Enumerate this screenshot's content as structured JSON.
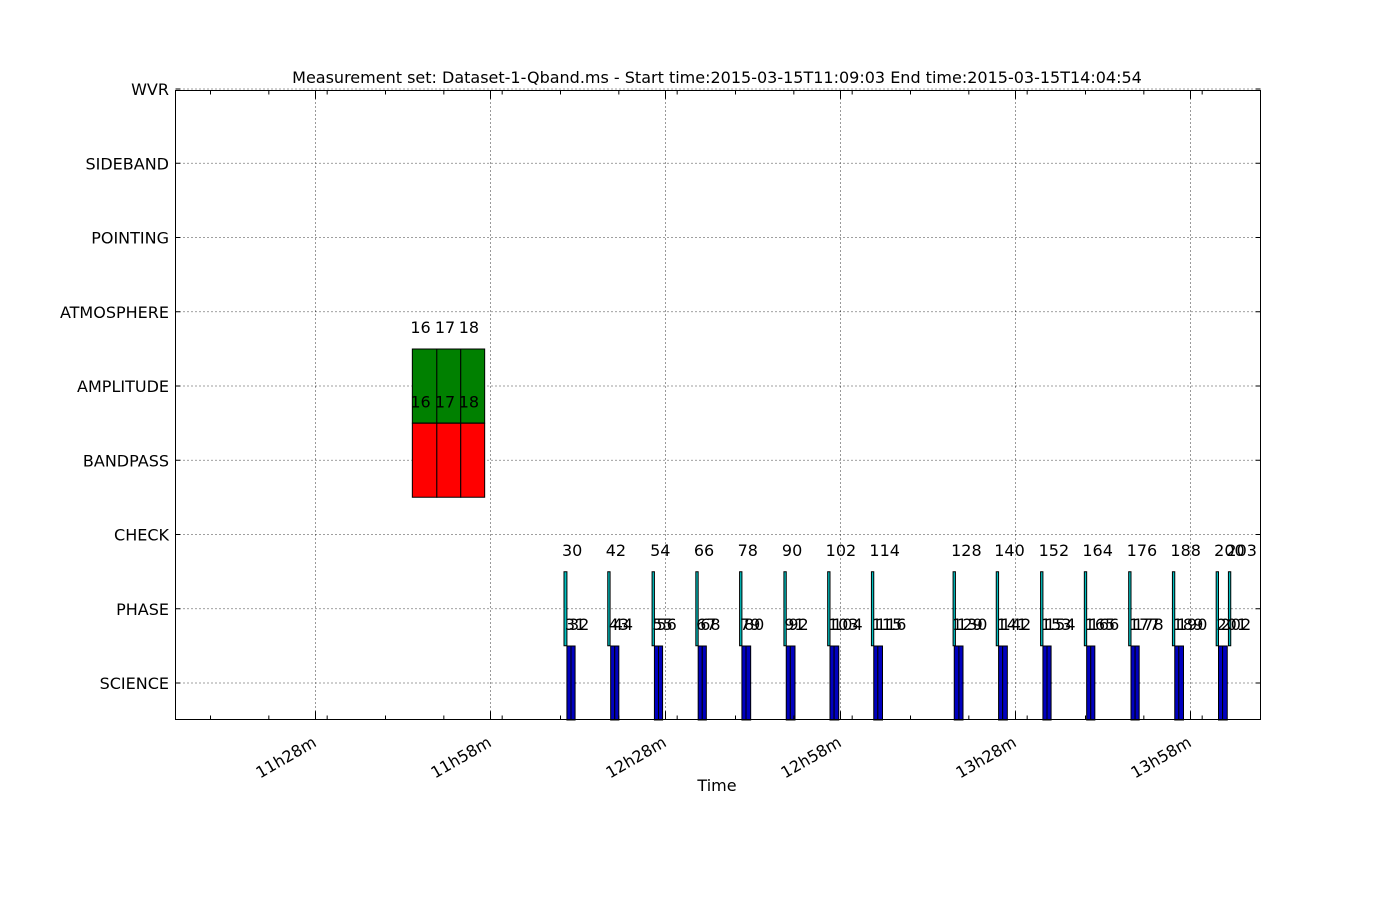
{
  "chart_data": {
    "type": "bar",
    "title": "Measurement set: Dataset-1-Qband.ms - Start time:2015-03-15T11:09:03 End time:2015-03-15T14:04:54",
    "xlabel": "Time",
    "ylabel": "",
    "grid": true,
    "x_tick_labels": [
      "11h28m",
      "11h58m",
      "12h28m",
      "12h58m",
      "13h28m",
      "13h58m"
    ],
    "x_tick_minutes": [
      688,
      718,
      748,
      778,
      808,
      838
    ],
    "xlim_minutes": [
      664,
      850
    ],
    "categories": [
      "SCIENCE",
      "PHASE",
      "CHECK",
      "BANDPASS",
      "AMPLITUDE",
      "ATMOSPHERE",
      "POINTING",
      "SIDEBAND",
      "WVR"
    ],
    "colors": {
      "SCIENCE": "#0000bf",
      "PHASE": "#00bfbf",
      "BANDPASS": "#ff0000",
      "AMPLITUDE": "#008000"
    },
    "series": [
      {
        "category": "AMPLITUDE",
        "scans": [
          {
            "label": "16",
            "start": 704.6,
            "end": 708.8
          },
          {
            "label": "17",
            "start": 708.8,
            "end": 712.9
          },
          {
            "label": "18",
            "start": 712.9,
            "end": 717.0
          }
        ]
      },
      {
        "category": "BANDPASS",
        "scans": [
          {
            "label": "16",
            "start": 704.6,
            "end": 708.8
          },
          {
            "label": "17",
            "start": 708.8,
            "end": 712.9
          },
          {
            "label": "18",
            "start": 712.9,
            "end": 717.0
          }
        ]
      },
      {
        "category": "PHASE",
        "scans": [
          {
            "label": "30",
            "start": 730.6,
            "end": 731.1
          },
          {
            "label": "42",
            "start": 738.1,
            "end": 738.5
          },
          {
            "label": "54",
            "start": 745.7,
            "end": 746.1
          },
          {
            "label": "66",
            "start": 753.2,
            "end": 753.6
          },
          {
            "label": "78",
            "start": 760.7,
            "end": 761.1
          },
          {
            "label": "90",
            "start": 768.3,
            "end": 768.7
          },
          {
            "label": "102",
            "start": 775.8,
            "end": 776.2
          },
          {
            "label": "114",
            "start": 783.3,
            "end": 783.7
          },
          {
            "label": "128",
            "start": 797.3,
            "end": 797.7
          },
          {
            "label": "140",
            "start": 804.7,
            "end": 805.1
          },
          {
            "label": "152",
            "start": 812.3,
            "end": 812.7
          },
          {
            "label": "164",
            "start": 819.8,
            "end": 820.2
          },
          {
            "label": "176",
            "start": 827.4,
            "end": 827.8
          },
          {
            "label": "188",
            "start": 834.9,
            "end": 835.3
          },
          {
            "label": "200",
            "start": 842.4,
            "end": 842.8
          },
          {
            "label": "203",
            "start": 844.5,
            "end": 844.9
          }
        ]
      },
      {
        "category": "SCIENCE",
        "scans": [
          {
            "label": "31",
            "start": 731.1,
            "end": 731.8
          },
          {
            "label": "32",
            "start": 731.8,
            "end": 732.5
          },
          {
            "label": "43",
            "start": 738.6,
            "end": 739.3
          },
          {
            "label": "44",
            "start": 739.3,
            "end": 740.0
          },
          {
            "label": "55",
            "start": 746.1,
            "end": 746.8
          },
          {
            "label": "56",
            "start": 746.8,
            "end": 747.5
          },
          {
            "label": "67",
            "start": 753.6,
            "end": 754.3
          },
          {
            "label": "68",
            "start": 754.3,
            "end": 755.0
          },
          {
            "label": "79",
            "start": 761.1,
            "end": 761.8
          },
          {
            "label": "80",
            "start": 761.8,
            "end": 762.6
          },
          {
            "label": "91",
            "start": 768.7,
            "end": 769.4
          },
          {
            "label": "92",
            "start": 769.4,
            "end": 770.2
          },
          {
            "label": "103",
            "start": 776.2,
            "end": 776.9
          },
          {
            "label": "104",
            "start": 776.9,
            "end": 777.7
          },
          {
            "label": "115",
            "start": 783.7,
            "end": 784.4
          },
          {
            "label": "116",
            "start": 784.4,
            "end": 785.2
          },
          {
            "label": "129",
            "start": 797.5,
            "end": 798.3
          },
          {
            "label": "130",
            "start": 798.3,
            "end": 799.0
          },
          {
            "label": "141",
            "start": 805.1,
            "end": 805.8
          },
          {
            "label": "142",
            "start": 805.8,
            "end": 806.6
          },
          {
            "label": "153",
            "start": 812.7,
            "end": 813.4
          },
          {
            "label": "154",
            "start": 813.4,
            "end": 814.1
          },
          {
            "label": "165",
            "start": 820.2,
            "end": 820.9
          },
          {
            "label": "166",
            "start": 820.9,
            "end": 821.6
          },
          {
            "label": "177",
            "start": 827.8,
            "end": 828.5
          },
          {
            "label": "178",
            "start": 828.5,
            "end": 829.2
          },
          {
            "label": "189",
            "start": 835.3,
            "end": 836.0
          },
          {
            "label": "190",
            "start": 836.0,
            "end": 836.8
          },
          {
            "label": "201",
            "start": 842.8,
            "end": 843.5
          },
          {
            "label": "202",
            "start": 843.5,
            "end": 844.3
          }
        ]
      }
    ]
  }
}
